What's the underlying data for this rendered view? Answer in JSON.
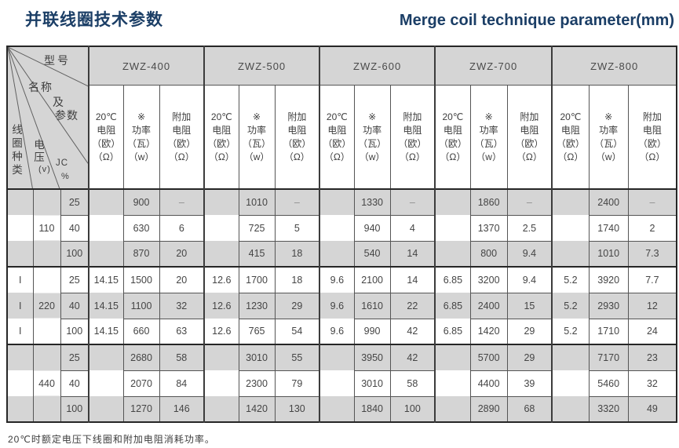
{
  "page": {
    "title_zh": "并联线圈技术参数",
    "title_en": "Merge coil technique parameter(mm)",
    "footnote": "20℃时额定电压下线圈和附加电阻消耗功率。"
  },
  "corner": {
    "model": "型号",
    "name": "名称",
    "and": "及",
    "params": "参数",
    "coil_type": "线圈种类",
    "voltage": "电压",
    "voltage_unit": "(v)",
    "jc": "JC",
    "percent": "%"
  },
  "colors": {
    "title": "#1b3e66",
    "header_bg": "#d5d5d5",
    "stripe_bg": "#d5d5d5",
    "border_dark": "#262626",
    "border_light": "#555555"
  },
  "table": {
    "groups": [
      "ZWZ-400",
      "ZWZ-500",
      "ZWZ-600",
      "ZWZ-700",
      "ZWZ-800"
    ],
    "subheaders": [
      [
        "20℃",
        "电阻",
        "（欧）",
        "（Ω）"
      ],
      [
        "※",
        "功率",
        "（瓦）",
        "（w）"
      ],
      [
        "附加",
        "电阻",
        "（欧）",
        "（Ω）"
      ]
    ],
    "voltage_groups": [
      {
        "voltage": "110",
        "coil_type": "",
        "rows": [
          {
            "jc": "25",
            "cells": [
              [
                "",
                "900",
                "–"
              ],
              [
                "",
                "1010",
                "–"
              ],
              [
                "",
                "1330",
                "–"
              ],
              [
                "",
                "1860",
                "–"
              ],
              [
                "",
                "2400",
                "–"
              ]
            ]
          },
          {
            "jc": "40",
            "cells": [
              [
                "",
                "630",
                "6"
              ],
              [
                "",
                "725",
                "5"
              ],
              [
                "",
                "940",
                "4"
              ],
              [
                "",
                "1370",
                "2.5"
              ],
              [
                "",
                "1740",
                "2"
              ]
            ]
          },
          {
            "jc": "100",
            "cells": [
              [
                "",
                "870",
                "20"
              ],
              [
                "",
                "415",
                "18"
              ],
              [
                "",
                "540",
                "14"
              ],
              [
                "",
                "800",
                "9.4"
              ],
              [
                "",
                "1010",
                "7.3"
              ]
            ]
          }
        ]
      },
      {
        "voltage": "220",
        "coil_type": "I",
        "rows": [
          {
            "jc": "25",
            "cells": [
              [
                "14.15",
                "1500",
                "20"
              ],
              [
                "12.6",
                "1700",
                "18"
              ],
              [
                "9.6",
                "2100",
                "14"
              ],
              [
                "6.85",
                "3200",
                "9.4"
              ],
              [
                "5.2",
                "3920",
                "7.7"
              ]
            ]
          },
          {
            "jc": "40",
            "cells": [
              [
                "14.15",
                "1100",
                "32"
              ],
              [
                "12.6",
                "1230",
                "29"
              ],
              [
                "9.6",
                "1610",
                "22"
              ],
              [
                "6.85",
                "2400",
                "15"
              ],
              [
                "5.2",
                "2930",
                "12"
              ]
            ]
          },
          {
            "jc": "100",
            "cells": [
              [
                "14.15",
                "660",
                "63"
              ],
              [
                "12.6",
                "765",
                "54"
              ],
              [
                "9.6",
                "990",
                "42"
              ],
              [
                "6.85",
                "1420",
                "29"
              ],
              [
                "5.2",
                "1710",
                "24"
              ]
            ]
          }
        ]
      },
      {
        "voltage": "440",
        "coil_type": "",
        "rows": [
          {
            "jc": "25",
            "cells": [
              [
                "",
                "2680",
                "58"
              ],
              [
                "",
                "3010",
                "55"
              ],
              [
                "",
                "3950",
                "42"
              ],
              [
                "",
                "5700",
                "29"
              ],
              [
                "",
                "7170",
                "23"
              ]
            ]
          },
          {
            "jc": "40",
            "cells": [
              [
                "",
                "2070",
                "84"
              ],
              [
                "",
                "2300",
                "79"
              ],
              [
                "",
                "3010",
                "58"
              ],
              [
                "",
                "4400",
                "39"
              ],
              [
                "",
                "5460",
                "32"
              ]
            ]
          },
          {
            "jc": "100",
            "cells": [
              [
                "",
                "1270",
                "146"
              ],
              [
                "",
                "1420",
                "130"
              ],
              [
                "",
                "1840",
                "100"
              ],
              [
                "",
                "2890",
                "68"
              ],
              [
                "",
                "3320",
                "49"
              ]
            ]
          }
        ]
      }
    ]
  }
}
